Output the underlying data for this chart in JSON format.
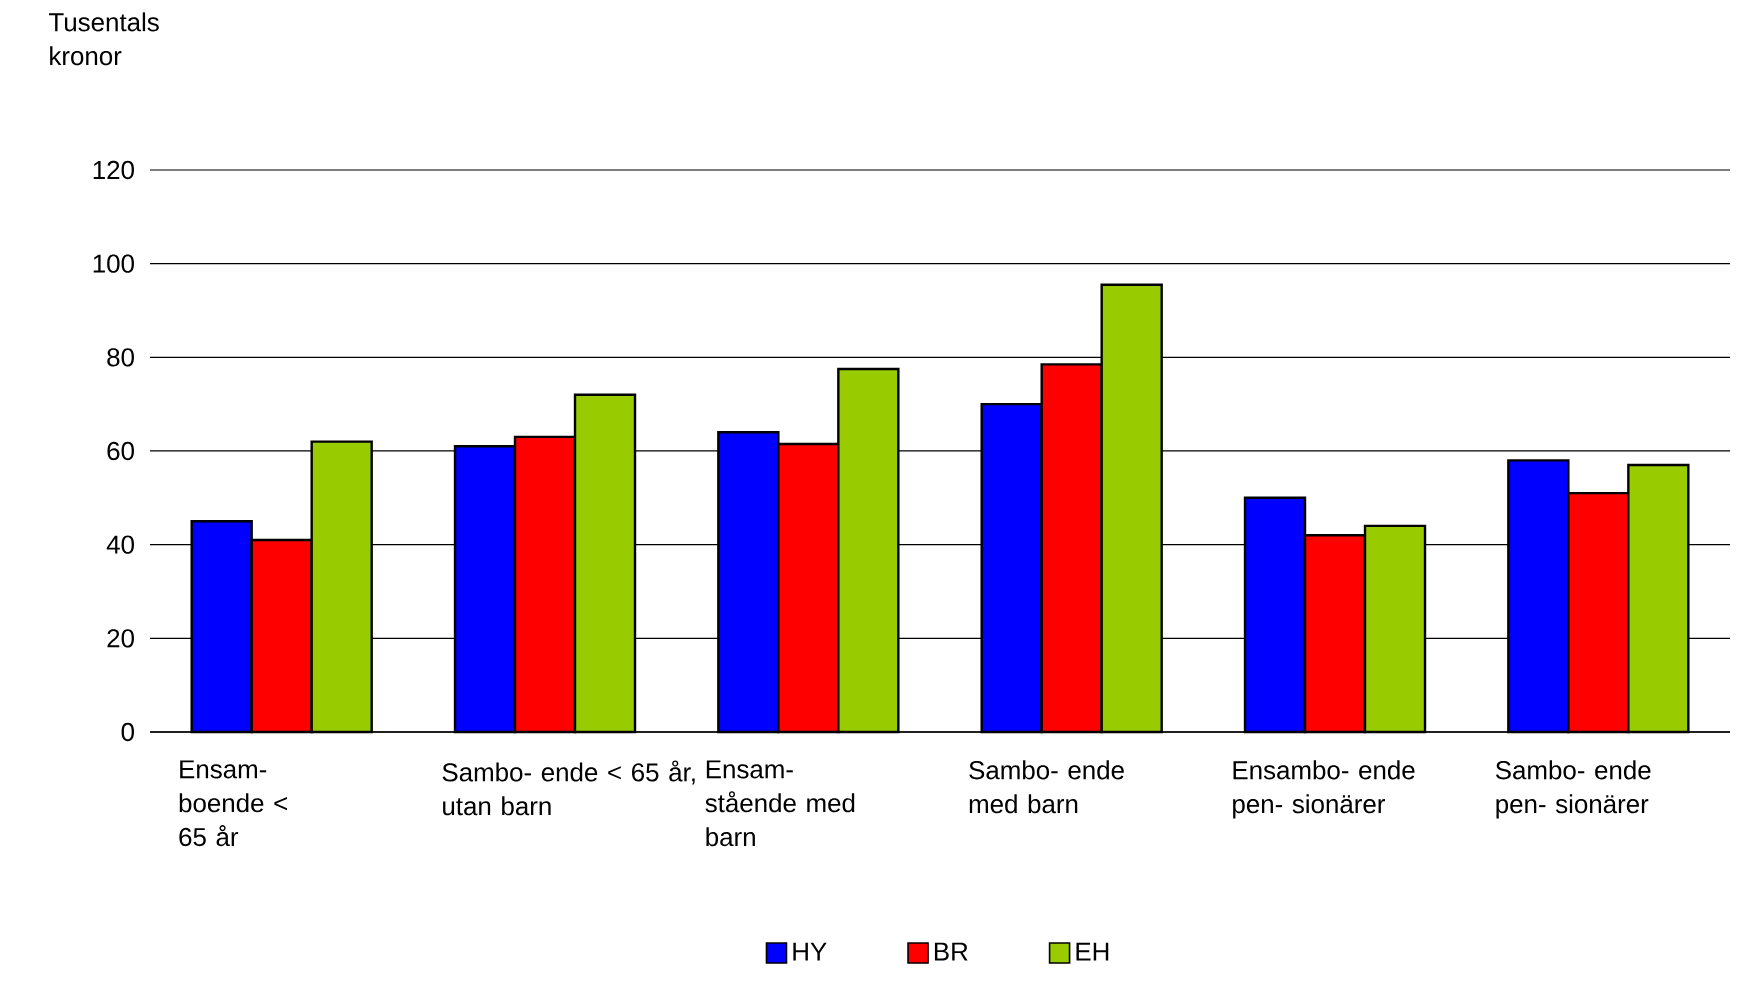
{
  "chart_data": {
    "type": "bar",
    "ylabel": "Tusentals kronor",
    "categories": [
      "Ensam- boende < 65 år",
      "Sambo- ende < 65 år, utan barn",
      "Ensam- stående med barn",
      "Sambo- ende med barn",
      "Ensambo- ende pen- sionärer",
      "Sambo- ende pen- sionärer"
    ],
    "series": [
      {
        "name": "HY",
        "color": "#0000ff",
        "values": [
          45,
          61,
          64,
          70,
          50,
          58
        ]
      },
      {
        "name": "BR",
        "color": "#ff0000",
        "values": [
          41,
          63,
          61.5,
          78.5,
          42,
          51
        ]
      },
      {
        "name": "EH",
        "color": "#99cc00",
        "values": [
          62,
          72,
          77.5,
          95.5,
          44,
          57
        ]
      }
    ],
    "ylim": [
      0,
      120
    ],
    "yticks": [
      0,
      20,
      40,
      60,
      80,
      100,
      120
    ],
    "grid": "y",
    "legend": "bottom"
  }
}
